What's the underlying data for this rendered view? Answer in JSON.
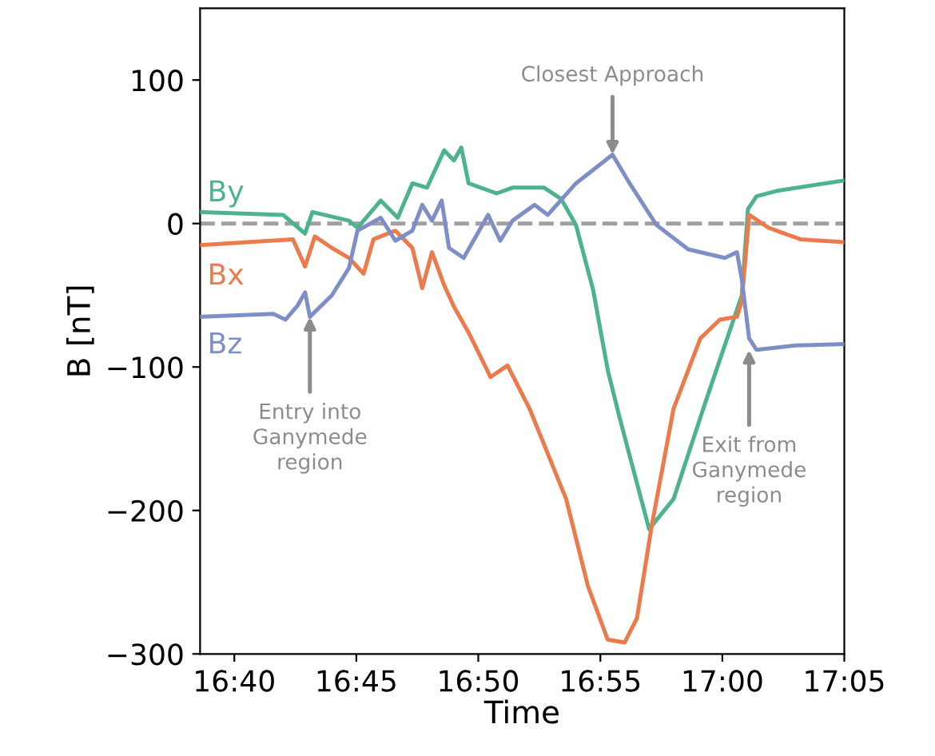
{
  "chart_data": {
    "type": "line",
    "xlabel": "Time",
    "ylabel": "B [nT]",
    "xlim": [
      16.6433,
      17.0833
    ],
    "ylim": [
      -300,
      150
    ],
    "xticks": [
      {
        "value": 16.6667,
        "label": "16:40"
      },
      {
        "value": 16.75,
        "label": "16:45"
      },
      {
        "value": 16.8333,
        "label": "16:50"
      },
      {
        "value": 16.9167,
        "label": "16:55"
      },
      {
        "value": 17.0,
        "label": "17:00"
      },
      {
        "value": 17.0833,
        "label": "17:05"
      }
    ],
    "yticks": [
      {
        "value": -300,
        "label": "−300"
      },
      {
        "value": -200,
        "label": "−200"
      },
      {
        "value": -100,
        "label": "−100"
      },
      0,
      100
    ],
    "grid": false,
    "legend": false,
    "marker": "none",
    "line_style": "solid",
    "ref_lines": [
      {
        "axis": "y",
        "value": 0,
        "color": "#a0a0a0",
        "line_style": "dashed"
      }
    ],
    "annotations": [
      {
        "text": "Closest Approach",
        "x": 16.925,
        "y": 48
      },
      {
        "text": "Entry into\nGanymede\nregion",
        "x": 16.7183,
        "y": -65
      },
      {
        "text": "Exit from\nGanymede\nregion",
        "x": 17.0183,
        "y": -88
      }
    ],
    "series": [
      {
        "name": "By",
        "color": "#4db38e",
        "x": [
          16.6433,
          16.7,
          16.715,
          16.72,
          16.745,
          16.7508,
          16.7667,
          16.7783,
          16.7883,
          16.7983,
          16.81,
          16.8167,
          16.8217,
          16.8267,
          16.8458,
          16.8567,
          16.8783,
          16.89,
          16.9,
          16.9117,
          16.9217,
          16.93,
          16.95,
          16.9667,
          16.9883,
          17.0133,
          17.0175,
          17.0233,
          17.0383,
          17.0833
        ],
        "values": [
          8,
          6,
          -7,
          8,
          2,
          -3,
          16,
          4,
          28,
          25,
          51,
          44,
          53,
          28,
          21,
          25,
          25,
          17,
          -1,
          -46,
          -102,
          -136,
          -213,
          -192,
          -125,
          -50,
          10,
          19,
          23,
          30
        ]
      },
      {
        "name": "Bx",
        "color": "#ec7a4b",
        "x": [
          16.6433,
          16.7067,
          16.715,
          16.7217,
          16.7333,
          16.745,
          16.755,
          16.7617,
          16.7767,
          16.7883,
          16.795,
          16.8017,
          16.81,
          16.8167,
          16.8267,
          16.8417,
          16.8533,
          16.8683,
          16.8933,
          16.9083,
          16.9217,
          16.9333,
          16.9417,
          16.9517,
          16.9667,
          16.985,
          16.9983,
          17.01,
          17.0133,
          17.0183,
          17.0317,
          17.0533,
          17.0833
        ],
        "values": [
          -15,
          -11,
          -30,
          -9,
          -17,
          -24,
          -35,
          -11,
          -5,
          -17,
          -45,
          -20,
          -43,
          -58,
          -76,
          -107,
          -99,
          -129,
          -192,
          -253,
          -290,
          -292,
          -275,
          -211,
          -129,
          -80,
          -67,
          -65,
          -54,
          6,
          -3,
          -11,
          -13
        ]
      },
      {
        "name": "Bz",
        "color": "#7e8fc7",
        "x": [
          16.6433,
          16.6933,
          16.7017,
          16.71,
          16.715,
          16.7183,
          16.7333,
          16.745,
          16.7508,
          16.7667,
          16.7767,
          16.7883,
          16.795,
          16.8017,
          16.8083,
          16.8133,
          16.8233,
          16.8317,
          16.84,
          16.8483,
          16.8567,
          16.8717,
          16.8808,
          16.9,
          16.925,
          16.9367,
          16.955,
          16.9767,
          17.0017,
          17.01,
          17.0133,
          17.0183,
          17.0233,
          17.05,
          17.0833
        ],
        "values": [
          -65,
          -63,
          -67,
          -57,
          -48,
          -65,
          -50,
          -31,
          -5,
          4,
          -12,
          -5,
          13,
          2,
          16,
          -17,
          -24,
          -9,
          6,
          -12,
          2,
          13,
          6,
          28,
          48,
          28,
          -1,
          -18,
          -24,
          -20,
          -39,
          -80,
          -88,
          -85,
          -84
        ]
      }
    ]
  }
}
